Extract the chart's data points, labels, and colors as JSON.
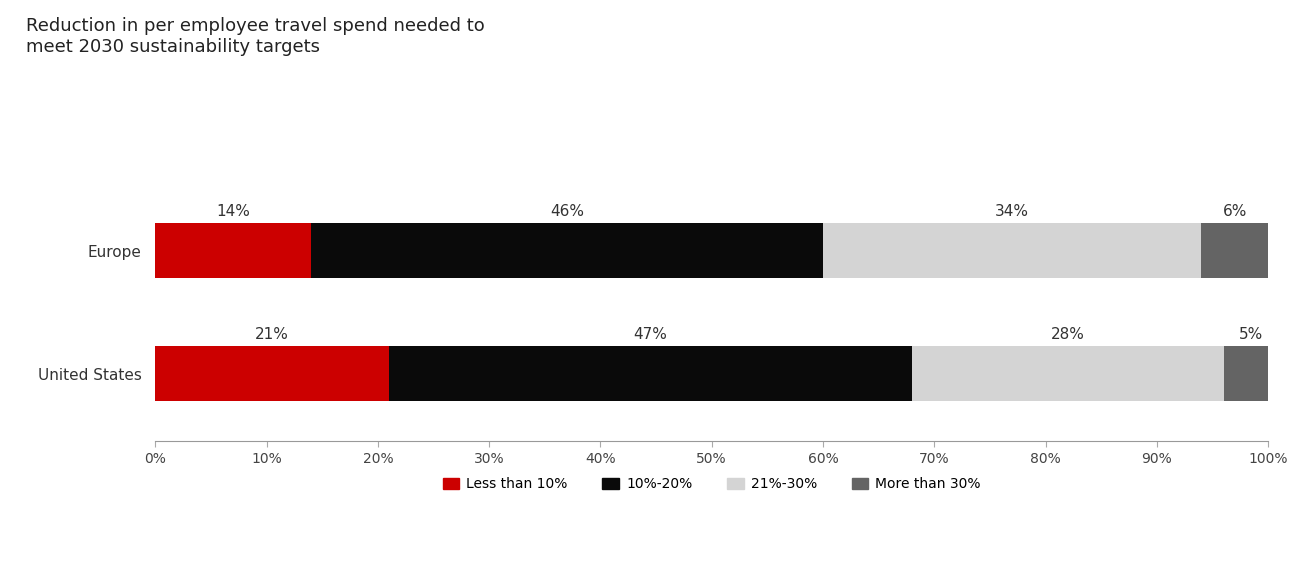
{
  "title": "Reduction in per employee travel spend needed to\nmeet 2030 sustainability targets",
  "categories": [
    "United States",
    "Europe"
  ],
  "segments": [
    "Less than 10%",
    "10%-20%",
    "21%-30%",
    "More than 30%"
  ],
  "values": {
    "Europe": [
      14,
      46,
      34,
      6
    ],
    "United States": [
      21,
      47,
      28,
      5
    ]
  },
  "colors": [
    "#cc0000",
    "#0a0a0a",
    "#d4d4d4",
    "#646464"
  ],
  "xlim": [
    0,
    100
  ],
  "xticks": [
    0,
    10,
    20,
    30,
    40,
    50,
    60,
    70,
    80,
    90,
    100
  ],
  "xtick_labels": [
    "0%",
    "10%",
    "20%",
    "30%",
    "40%",
    "50%",
    "60%",
    "70%",
    "80%",
    "90%",
    "100%"
  ],
  "title_fontsize": 13,
  "label_fontsize": 11,
  "tick_fontsize": 10,
  "legend_fontsize": 10,
  "bar_height": 0.45,
  "background_color": "#ffffff"
}
